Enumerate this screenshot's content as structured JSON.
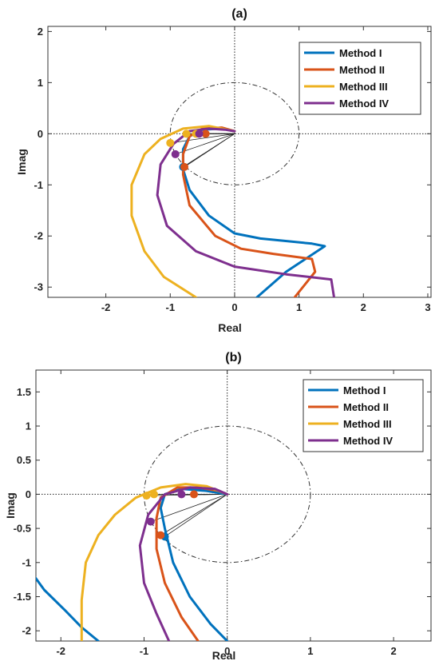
{
  "colors": {
    "Method I": "#0072BD",
    "Method II": "#D95319",
    "Method III": "#EDB120",
    "Method IV": "#7E2F8E"
  },
  "chart_data": [
    {
      "type": "line",
      "title": "(a)",
      "xlabel": "Real",
      "ylabel": "Imag",
      "xlim": [
        -2.9,
        3.05
      ],
      "ylim": [
        -3.2,
        2.1
      ],
      "xticks": [
        -2,
        -1,
        0,
        1,
        2,
        3
      ],
      "yticks": [
        -3,
        -2,
        -1,
        0,
        1,
        2
      ],
      "grid": false,
      "legend": "top-right",
      "unit_circle": true,
      "series": [
        {
          "name": "Method I",
          "x": [
            0.3,
            0.8,
            1.4,
            1.2,
            0.4,
            0.0,
            -0.4,
            -0.7,
            -0.8,
            -0.8,
            -0.7,
            -0.5,
            -0.2,
            0.0
          ],
          "y": [
            -3.25,
            -2.7,
            -2.2,
            -2.15,
            -2.05,
            -1.95,
            -1.6,
            -1.1,
            -0.7,
            -0.3,
            -0.05,
            0.08,
            0.1,
            0.05
          ]
        },
        {
          "name": "Method II",
          "x": [
            0.9,
            1.25,
            1.2,
            0.6,
            0.1,
            -0.3,
            -0.7,
            -0.8,
            -0.8,
            -0.7,
            -0.5,
            -0.2,
            0.0
          ],
          "y": [
            -3.25,
            -2.7,
            -2.45,
            -2.35,
            -2.25,
            -2.0,
            -1.4,
            -0.8,
            -0.4,
            -0.05,
            0.1,
            0.12,
            0.05
          ]
        },
        {
          "name": "Method III",
          "x": [
            -0.6,
            -1.1,
            -1.4,
            -1.6,
            -1.6,
            -1.4,
            -1.15,
            -0.8,
            -0.4,
            -0.2,
            0.0
          ],
          "y": [
            -3.2,
            -2.8,
            -2.3,
            -1.6,
            -1.0,
            -0.4,
            -0.1,
            0.1,
            0.15,
            0.1,
            0.05
          ]
        },
        {
          "name": "Method IV",
          "x": [
            1.55,
            1.5,
            0.8,
            0.0,
            -0.6,
            -1.05,
            -1.2,
            -1.15,
            -0.95,
            -0.7,
            -0.4,
            -0.15,
            0.0
          ],
          "y": [
            -3.25,
            -2.85,
            -2.75,
            -2.6,
            -2.3,
            -1.8,
            -1.2,
            -0.6,
            -0.2,
            0.05,
            0.1,
            0.08,
            0.05
          ]
        }
      ],
      "markers": [
        {
          "series": "Method I",
          "x": -0.8,
          "y": -0.65
        },
        {
          "series": "Method II",
          "x": -0.78,
          "y": -0.65
        },
        {
          "series": "Method II",
          "x": -0.45,
          "y": 0.0
        },
        {
          "series": "Method III",
          "x": -1.0,
          "y": -0.18
        },
        {
          "series": "Method III",
          "x": -0.75,
          "y": 0.0
        },
        {
          "series": "Method III",
          "x": -0.6,
          "y": 0.0
        },
        {
          "series": "Method IV",
          "x": -0.92,
          "y": -0.4
        },
        {
          "series": "Method IV",
          "x": -0.55,
          "y": 0.0
        }
      ]
    },
    {
      "type": "line",
      "title": "(b)",
      "xlabel": "Real",
      "ylabel": "Imag",
      "xlim": [
        -2.3,
        2.45
      ],
      "ylim": [
        -2.15,
        1.82
      ],
      "xticks": [
        -2,
        -1,
        0,
        1,
        2
      ],
      "yticks": [
        -2,
        -1.5,
        -1,
        -0.5,
        0,
        0.5,
        1,
        1.5
      ],
      "grid": false,
      "legend": "top-right",
      "unit_circle": true,
      "series": [
        {
          "name": "Method I",
          "x": [
            -2.35,
            -2.2,
            -1.95,
            -1.75,
            -1.55
          ],
          "y": [
            -1.15,
            -1.4,
            -1.7,
            -1.95,
            -2.15
          ]
        },
        {
          "name": "Method I",
          "x": [
            0.0,
            -0.2,
            -0.45,
            -0.65,
            -0.75,
            -0.8,
            -0.75,
            -0.55,
            -0.25,
            0.0
          ],
          "y": [
            -2.15,
            -1.9,
            -1.5,
            -1.0,
            -0.5,
            -0.2,
            0.0,
            0.08,
            0.05,
            0.0
          ]
        },
        {
          "name": "Method II",
          "x": [
            -0.35,
            -0.55,
            -0.75,
            -0.85,
            -0.85,
            -0.8,
            -0.6,
            -0.35,
            -0.1,
            0.0
          ],
          "y": [
            -2.15,
            -1.8,
            -1.3,
            -0.8,
            -0.35,
            -0.05,
            0.1,
            0.1,
            0.05,
            0.0
          ]
        },
        {
          "name": "Method III",
          "x": [
            -1.75,
            -1.75,
            -1.7,
            -1.55,
            -1.35,
            -1.1,
            -0.8,
            -0.5,
            -0.25,
            0.0
          ],
          "y": [
            -2.15,
            -1.55,
            -1.0,
            -0.6,
            -0.3,
            -0.05,
            0.1,
            0.15,
            0.12,
            0.0
          ]
        },
        {
          "name": "Method IV",
          "x": [
            -0.7,
            -0.85,
            -1.0,
            -1.05,
            -0.95,
            -0.75,
            -0.45,
            -0.15,
            0.0
          ],
          "y": [
            -2.15,
            -1.75,
            -1.3,
            -0.75,
            -0.3,
            0.0,
            0.1,
            0.08,
            0.0
          ]
        }
      ],
      "markers": [
        {
          "series": "Method I",
          "x": -0.75,
          "y": -0.62
        },
        {
          "series": "Method II",
          "x": -0.8,
          "y": -0.6
        },
        {
          "series": "Method II",
          "x": -0.4,
          "y": 0.0
        },
        {
          "series": "Method III",
          "x": -0.97,
          "y": -0.02
        },
        {
          "series": "Method III",
          "x": -0.88,
          "y": 0.0
        },
        {
          "series": "Method IV",
          "x": -0.92,
          "y": -0.4
        },
        {
          "series": "Method IV",
          "x": -0.55,
          "y": 0.0
        }
      ]
    }
  ]
}
